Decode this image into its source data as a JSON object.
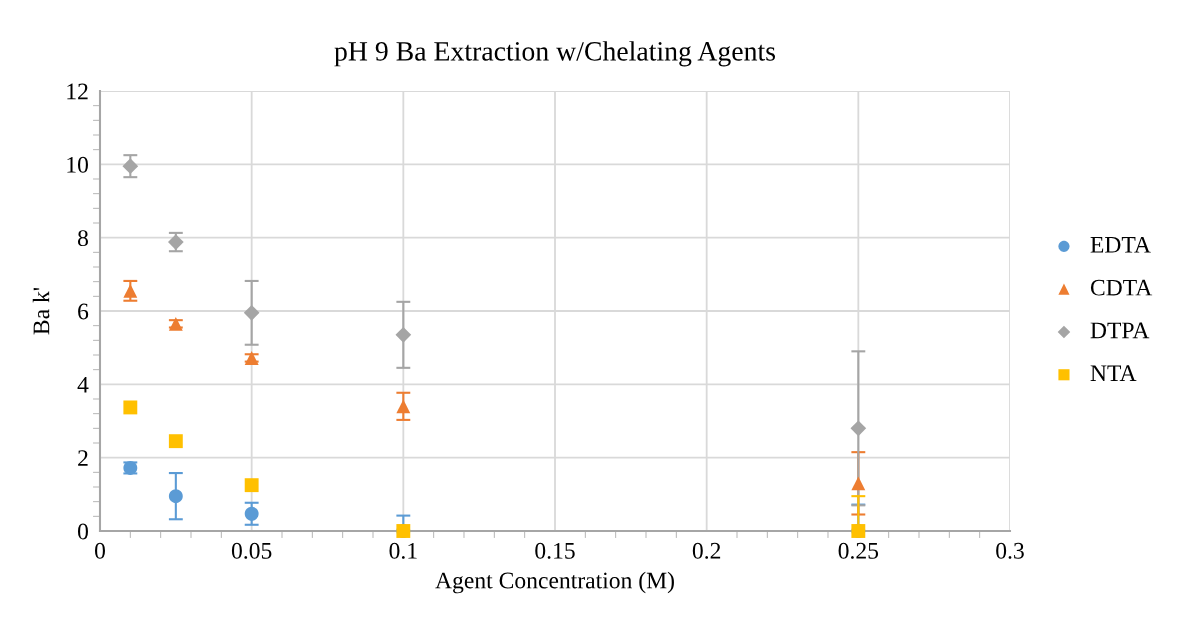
{
  "chart_data": {
    "type": "scatter",
    "title": "pH 9 Ba Extraction w/Chelating Agents",
    "xlabel": "Agent Concentration (M)",
    "ylabel": "Ba k'",
    "x": [
      0.01,
      0.025,
      0.05,
      0.1,
      0.25
    ],
    "series": [
      {
        "name": "EDTA",
        "color": "#5b9bd5",
        "marker": "circle",
        "values": [
          1.72,
          0.95,
          0.47,
          0,
          0
        ],
        "errors": [
          0.15,
          0.63,
          0.3,
          [
            0,
            0.42
          ],
          [
            0,
            0.72
          ]
        ]
      },
      {
        "name": "CDTA",
        "color": "#ed7d31",
        "marker": "triangle",
        "values": [
          6.55,
          5.65,
          4.72,
          3.4,
          1.3
        ],
        "errors": [
          0.27,
          0.1,
          0.1,
          0.37,
          0.85
        ]
      },
      {
        "name": "DTPA",
        "color": "#a5a5a5",
        "marker": "diamond",
        "values": [
          9.95,
          7.88,
          5.95,
          5.35,
          2.8
        ],
        "errors": [
          0.3,
          0.25,
          0.87,
          0.9,
          2.1
        ]
      },
      {
        "name": "NTA",
        "color": "#ffc000",
        "marker": "square",
        "values": [
          3.37,
          2.45,
          1.25,
          0,
          0
        ],
        "errors": [
          null,
          null,
          null,
          null,
          [
            0,
            0.95
          ]
        ]
      }
    ],
    "xlim": [
      0,
      0.3
    ],
    "xticks": [
      0,
      0.05,
      0.1,
      0.15,
      0.2,
      0.25,
      0.3
    ],
    "ylim": [
      0,
      12
    ],
    "yticks": [
      0,
      2,
      4,
      6,
      8,
      10,
      12
    ],
    "grid": true,
    "legend": "right"
  }
}
